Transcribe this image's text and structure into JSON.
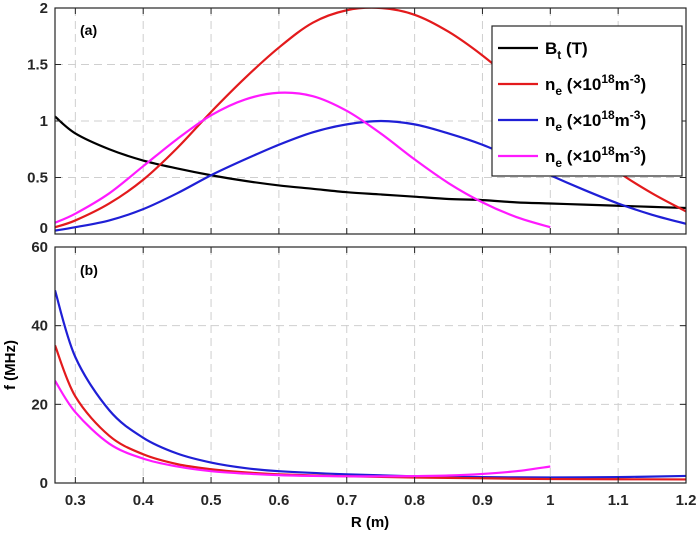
{
  "chart_data": [
    {
      "panel": "a",
      "type": "line",
      "panel_label": "(a)",
      "xlim": [
        0.27,
        1.2
      ],
      "ylim": [
        0,
        2
      ],
      "xticks": [
        0.3,
        0.4,
        0.5,
        0.6,
        0.7,
        0.8,
        0.9,
        1.0,
        1.1,
        1.2
      ],
      "yticks": [
        "0",
        "0.5",
        "1",
        "1.5",
        "2"
      ],
      "ytick_values": [
        0,
        0.5,
        1,
        1.5,
        2
      ],
      "grid": true,
      "legend_position": "top-right",
      "series": [
        {
          "name": "B_t (T)",
          "legend_main": "B",
          "legend_sub": "t",
          "legend_rest": " (T)",
          "color": "#000000",
          "x": [
            0.27,
            0.3,
            0.35,
            0.4,
            0.45,
            0.5,
            0.55,
            0.6,
            0.65,
            0.7,
            0.75,
            0.8,
            0.85,
            0.9,
            0.95,
            1.0,
            1.05,
            1.1,
            1.15,
            1.2
          ],
          "y": [
            1.04,
            0.89,
            0.75,
            0.65,
            0.58,
            0.52,
            0.47,
            0.43,
            0.4,
            0.37,
            0.35,
            0.33,
            0.31,
            0.3,
            0.28,
            0.27,
            0.26,
            0.25,
            0.24,
            0.23
          ]
        },
        {
          "name": "n_e (×10^18 m^-3)",
          "legend_main": "n",
          "legend_sub": "e",
          "legend_rest": " (×10",
          "legend_sup": "18",
          "legend_unit": "m",
          "legend_sup2": "-3",
          "legend_close": ")",
          "color": "#e31a1c",
          "x": [
            0.27,
            0.3,
            0.35,
            0.4,
            0.45,
            0.5,
            0.55,
            0.6,
            0.65,
            0.7,
            0.75,
            0.8,
            0.85,
            0.9,
            0.95,
            1.0,
            1.05,
            1.1,
            1.15,
            1.2
          ],
          "y": [
            0.06,
            0.12,
            0.27,
            0.48,
            0.76,
            1.08,
            1.38,
            1.65,
            1.87,
            1.98,
            2.0,
            1.94,
            1.79,
            1.58,
            1.33,
            1.07,
            0.8,
            0.55,
            0.36,
            0.2
          ]
        },
        {
          "name": "n_e (×10^18 m^-3)",
          "legend_main": "n",
          "legend_sub": "e",
          "legend_rest": " (×10",
          "legend_sup": "18",
          "legend_unit": "m",
          "legend_sup2": "-3",
          "legend_close": ")",
          "color": "#1f1fd6",
          "x": [
            0.27,
            0.3,
            0.35,
            0.4,
            0.45,
            0.5,
            0.55,
            0.6,
            0.65,
            0.7,
            0.75,
            0.8,
            0.85,
            0.9,
            0.95,
            1.0,
            1.05,
            1.1,
            1.15,
            1.2
          ],
          "y": [
            0.03,
            0.06,
            0.12,
            0.22,
            0.36,
            0.52,
            0.66,
            0.79,
            0.9,
            0.97,
            1.0,
            0.97,
            0.89,
            0.79,
            0.66,
            0.52,
            0.39,
            0.27,
            0.17,
            0.09
          ]
        },
        {
          "name": "n_e (×10^18 m^-3)",
          "legend_main": "n",
          "legend_sub": "e",
          "legend_rest": " (×10",
          "legend_sup": "18",
          "legend_unit": "m",
          "legend_sup2": "-3",
          "legend_close": ")",
          "color": "#ff1aff",
          "x": [
            0.27,
            0.3,
            0.35,
            0.4,
            0.45,
            0.5,
            0.55,
            0.6,
            0.65,
            0.7,
            0.75,
            0.8,
            0.85,
            0.9,
            0.95,
            1.0
          ],
          "y": [
            0.1,
            0.18,
            0.36,
            0.6,
            0.84,
            1.05,
            1.19,
            1.25,
            1.22,
            1.09,
            0.89,
            0.66,
            0.45,
            0.28,
            0.15,
            0.06
          ]
        }
      ]
    },
    {
      "panel": "b",
      "type": "line",
      "panel_label": "(b)",
      "xlabel": "R (m)",
      "ylabel": "f (MHz)",
      "xlim": [
        0.27,
        1.2
      ],
      "ylim": [
        0,
        60
      ],
      "xticks": [
        0.3,
        0.4,
        0.5,
        0.6,
        0.7,
        0.8,
        0.9,
        1.0,
        1.1,
        1.2
      ],
      "xtick_labels": [
        "0.3",
        "0.4",
        "0.5",
        "0.6",
        "0.7",
        "0.8",
        "0.9",
        "1",
        "1.1",
        "1.2"
      ],
      "yticks": [
        "0",
        "20",
        "40",
        "60"
      ],
      "ytick_values": [
        0,
        20,
        40,
        60
      ],
      "grid": true,
      "series": [
        {
          "name": "blue",
          "color": "#1f1fd6",
          "x": [
            0.27,
            0.3,
            0.35,
            0.4,
            0.45,
            0.5,
            0.55,
            0.6,
            0.7,
            0.8,
            0.9,
            1.0,
            1.1,
            1.2
          ],
          "y": [
            49,
            32,
            18.5,
            11.5,
            7.5,
            5.2,
            3.8,
            3.0,
            2.2,
            1.7,
            1.5,
            1.4,
            1.5,
            1.8
          ]
        },
        {
          "name": "red",
          "color": "#e31a1c",
          "x": [
            0.27,
            0.3,
            0.35,
            0.4,
            0.45,
            0.5,
            0.55,
            0.6,
            0.7,
            0.8,
            0.9,
            1.0,
            1.1,
            1.2
          ],
          "y": [
            35,
            22,
            12,
            7.3,
            4.8,
            3.5,
            2.7,
            2.2,
            1.7,
            1.4,
            1.2,
            1.0,
            0.95,
            0.9
          ]
        },
        {
          "name": "magenta",
          "color": "#ff1aff",
          "x": [
            0.27,
            0.3,
            0.35,
            0.4,
            0.45,
            0.5,
            0.55,
            0.6,
            0.65,
            0.7,
            0.75,
            0.8,
            0.85,
            0.9,
            0.95,
            1.0
          ],
          "y": [
            26,
            18,
            10,
            6.2,
            4.2,
            3.0,
            2.4,
            2.0,
            1.8,
            1.7,
            1.7,
            1.75,
            1.9,
            2.3,
            3.0,
            4.2
          ]
        }
      ]
    }
  ]
}
